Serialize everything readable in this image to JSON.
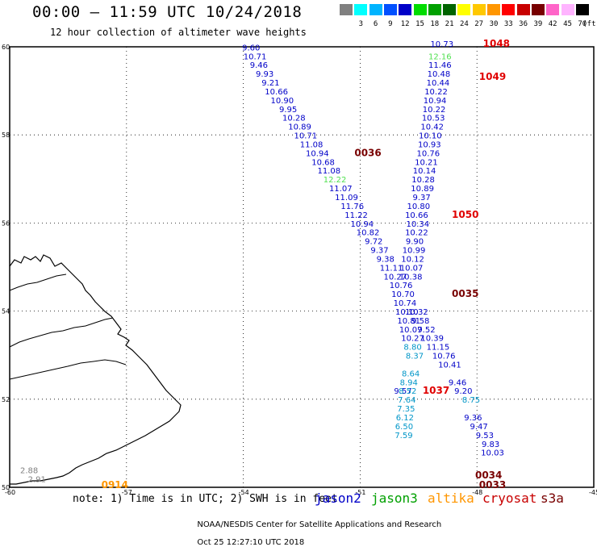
{
  "header": {
    "title": "00:00 – 11:59 UTC 10/24/2018",
    "subtitle": "12 hour collection of altimeter wave heights"
  },
  "legend": {
    "swatches": [
      {
        "color": "#808080",
        "label": ""
      },
      {
        "color": "#00ffff",
        "label": "3"
      },
      {
        "color": "#00b4ff",
        "label": "6"
      },
      {
        "color": "#0050ff",
        "label": "9"
      },
      {
        "color": "#0000c8",
        "label": "12"
      },
      {
        "color": "#00dc00",
        "label": "15"
      },
      {
        "color": "#00a000",
        "label": "18"
      },
      {
        "color": "#006400",
        "label": "21"
      },
      {
        "color": "#ffff00",
        "label": "24"
      },
      {
        "color": "#ffc800",
        "label": "27"
      },
      {
        "color": "#ff9600",
        "label": "30"
      },
      {
        "color": "#ff0000",
        "label": "33"
      },
      {
        "color": "#c80000",
        "label": "36"
      },
      {
        "color": "#780000",
        "label": "39"
      },
      {
        "color": "#ff64c8",
        "label": "42"
      },
      {
        "color": "#ffb4ff",
        "label": "45"
      },
      {
        "color": "#000000",
        "label": "70"
      }
    ],
    "unit": "(ft)"
  },
  "map": {
    "lat_range": [
      50,
      60
    ],
    "lon_range": [
      -60,
      -45
    ],
    "lat_ticks": [
      "60",
      "58",
      "56",
      "54",
      "52",
      "50"
    ],
    "lon_ticks": [
      "-60",
      "-57",
      "-54",
      "-51",
      "-48",
      "-45"
    ],
    "grid": "dotted"
  },
  "tracks": {
    "jason2": {
      "color": "#0000c8",
      "points": [
        {
          "lon": -53.8,
          "lat": 59.92,
          "v": "9.60"
        },
        {
          "lon": -53.7,
          "lat": 59.72,
          "v": "10.71"
        },
        {
          "lon": -53.6,
          "lat": 59.52,
          "v": "9.46"
        },
        {
          "lon": -53.45,
          "lat": 59.32,
          "v": "9.93"
        },
        {
          "lon": -53.3,
          "lat": 59.12,
          "v": "9.21"
        },
        {
          "lon": -53.15,
          "lat": 58.92,
          "v": "10.66"
        },
        {
          "lon": -53.0,
          "lat": 58.72,
          "v": "10.90"
        },
        {
          "lon": -52.85,
          "lat": 58.52,
          "v": "9.95"
        },
        {
          "lon": -52.7,
          "lat": 58.32,
          "v": "10.28"
        },
        {
          "lon": -52.55,
          "lat": 58.12,
          "v": "10.89"
        },
        {
          "lon": -52.4,
          "lat": 57.92,
          "v": "10.71"
        },
        {
          "lon": -52.25,
          "lat": 57.72,
          "v": "11.08"
        },
        {
          "lon": -52.1,
          "lat": 57.52,
          "v": "10.94"
        },
        {
          "lon": -51.95,
          "lat": 57.32,
          "v": "10.68"
        },
        {
          "lon": -51.8,
          "lat": 57.12,
          "v": "11.08"
        },
        {
          "lon": -51.5,
          "lat": 56.72,
          "v": "11.07"
        },
        {
          "lon": -51.35,
          "lat": 56.52,
          "v": "11.09"
        },
        {
          "lon": -51.2,
          "lat": 56.32,
          "v": "11.76"
        },
        {
          "lon": -51.1,
          "lat": 56.12,
          "v": "11.22"
        },
        {
          "lon": -50.95,
          "lat": 55.92,
          "v": "10.94"
        },
        {
          "lon": -50.8,
          "lat": 55.72,
          "v": "10.82"
        },
        {
          "lon": -50.65,
          "lat": 55.52,
          "v": "9.72"
        },
        {
          "lon": -50.5,
          "lat": 55.32,
          "v": "9.37"
        },
        {
          "lon": -50.35,
          "lat": 55.12,
          "v": "9.38"
        },
        {
          "lon": -50.2,
          "lat": 54.92,
          "v": "11.11"
        },
        {
          "lon": -50.1,
          "lat": 54.72,
          "v": "10.27"
        },
        {
          "lon": -49.95,
          "lat": 54.52,
          "v": "10.76"
        },
        {
          "lon": -49.9,
          "lat": 54.32,
          "v": "10.70"
        },
        {
          "lon": -49.85,
          "lat": 54.12,
          "v": "10.74"
        },
        {
          "lon": -49.8,
          "lat": 53.92,
          "v": "10.10"
        },
        {
          "lon": -49.75,
          "lat": 53.72,
          "v": "10.81"
        },
        {
          "lon": -49.7,
          "lat": 53.52,
          "v": "10.07"
        },
        {
          "lon": -49.65,
          "lat": 53.32,
          "v": "10.27"
        },
        {
          "lon": -49.9,
          "lat": 52.12,
          "v": "9.57"
        },
        {
          "lon": -48.9,
          "lat": 60.0,
          "v": "10.73"
        },
        {
          "lon": -48.95,
          "lat": 59.52,
          "v": "11.46"
        },
        {
          "lon": -48.98,
          "lat": 59.32,
          "v": "10.48"
        },
        {
          "lon": -49.0,
          "lat": 59.12,
          "v": "10.44"
        },
        {
          "lon": -49.05,
          "lat": 58.92,
          "v": "10.22"
        },
        {
          "lon": -49.08,
          "lat": 58.72,
          "v": "10.94"
        },
        {
          "lon": -49.1,
          "lat": 58.52,
          "v": "10.22"
        },
        {
          "lon": -49.12,
          "lat": 58.32,
          "v": "10.53"
        },
        {
          "lon": -49.15,
          "lat": 58.12,
          "v": "10.42"
        },
        {
          "lon": -49.2,
          "lat": 57.92,
          "v": "10.10"
        },
        {
          "lon": -49.22,
          "lat": 57.72,
          "v": "10.93"
        },
        {
          "lon": -49.25,
          "lat": 57.52,
          "v": "10.76"
        },
        {
          "lon": -49.3,
          "lat": 57.32,
          "v": "10.21"
        },
        {
          "lon": -49.35,
          "lat": 57.12,
          "v": "10.14"
        },
        {
          "lon": -49.38,
          "lat": 56.92,
          "v": "10.28"
        },
        {
          "lon": -49.4,
          "lat": 56.72,
          "v": "10.89"
        },
        {
          "lon": -49.42,
          "lat": 56.52,
          "v": "9.37"
        },
        {
          "lon": -49.5,
          "lat": 56.32,
          "v": "10.80"
        },
        {
          "lon": -49.55,
          "lat": 56.12,
          "v": "10.66"
        },
        {
          "lon": -49.52,
          "lat": 55.92,
          "v": "10.34"
        },
        {
          "lon": -49.55,
          "lat": 55.72,
          "v": "10.22"
        },
        {
          "lon": -49.6,
          "lat": 55.52,
          "v": "9.90"
        },
        {
          "lon": -49.62,
          "lat": 55.32,
          "v": "10.99"
        },
        {
          "lon": -49.65,
          "lat": 55.12,
          "v": "10.12"
        },
        {
          "lon": -49.68,
          "lat": 54.92,
          "v": "10.07"
        },
        {
          "lon": -49.7,
          "lat": 54.72,
          "v": "10.38"
        },
        {
          "lon": -49.55,
          "lat": 53.92,
          "v": "10.32"
        },
        {
          "lon": -49.45,
          "lat": 53.72,
          "v": "9.58"
        },
        {
          "lon": -49.3,
          "lat": 53.52,
          "v": "9.52"
        },
        {
          "lon": -49.15,
          "lat": 53.32,
          "v": "10.39"
        },
        {
          "lon": -49.0,
          "lat": 53.12,
          "v": "11.15"
        },
        {
          "lon": -48.85,
          "lat": 52.92,
          "v": "10.76"
        },
        {
          "lon": -48.7,
          "lat": 52.72,
          "v": "10.41"
        },
        {
          "lon": -48.5,
          "lat": 52.32,
          "v": "9.46"
        },
        {
          "lon": -48.35,
          "lat": 52.12,
          "v": "9.20"
        },
        {
          "lon": -48.1,
          "lat": 51.52,
          "v": "9.36"
        },
        {
          "lon": -47.95,
          "lat": 51.32,
          "v": "9.47"
        },
        {
          "lon": -47.8,
          "lat": 51.12,
          "v": "9.53"
        },
        {
          "lon": -47.65,
          "lat": 50.92,
          "v": "9.83"
        },
        {
          "lon": -47.6,
          "lat": 50.72,
          "v": "10.03"
        }
      ]
    },
    "jason3_light": {
      "color": "#50e050",
      "points": [
        {
          "lon": -48.95,
          "lat": 59.72,
          "v": "12.16"
        },
        {
          "lon": -51.65,
          "lat": 56.92,
          "v": "12.22"
        }
      ]
    },
    "cyan_track": {
      "color": "#0096c8",
      "points": [
        {
          "lon": -49.65,
          "lat": 53.12,
          "v": "8.80"
        },
        {
          "lon": -49.6,
          "lat": 52.92,
          "v": "8.37"
        },
        {
          "lon": -49.7,
          "lat": 52.52,
          "v": "8.64"
        },
        {
          "lon": -49.75,
          "lat": 52.32,
          "v": "8.94"
        },
        {
          "lon": -49.78,
          "lat": 52.12,
          "v": "8.52"
        },
        {
          "lon": -49.8,
          "lat": 51.92,
          "v": "7.64"
        },
        {
          "lon": -49.82,
          "lat": 51.72,
          "v": "7.35"
        },
        {
          "lon": -49.85,
          "lat": 51.52,
          "v": "6.12"
        },
        {
          "lon": -49.87,
          "lat": 51.32,
          "v": "6.50"
        },
        {
          "lon": -49.88,
          "lat": 51.12,
          "v": "7.59"
        },
        {
          "lon": -48.15,
          "lat": 51.92,
          "v": "8.75"
        }
      ]
    },
    "gray_track": {
      "color": "#808080",
      "points": [
        {
          "lon": -59.5,
          "lat": 50.32,
          "v": "2.88"
        },
        {
          "lon": -59.3,
          "lat": 50.12,
          "v": "2.91"
        }
      ]
    }
  },
  "time_labels": [
    {
      "lon": -47.5,
      "lat": 60.0,
      "t": "1048",
      "color": "#e00000"
    },
    {
      "lon": -47.6,
      "lat": 59.25,
      "t": "1049",
      "color": "#e00000"
    },
    {
      "lon": -48.3,
      "lat": 56.12,
      "t": "1050",
      "color": "#e00000"
    },
    {
      "lon": -50.8,
      "lat": 57.52,
      "t": "0036",
      "color": "#780000"
    },
    {
      "lon": -48.3,
      "lat": 54.32,
      "t": "0035",
      "color": "#780000"
    },
    {
      "lon": -49.05,
      "lat": 52.12,
      "t": "1037",
      "color": "#e00000"
    },
    {
      "lon": -47.7,
      "lat": 50.2,
      "t": "0034",
      "color": "#780000"
    },
    {
      "lon": -47.6,
      "lat": 49.98,
      "t": "0033",
      "color": "#780000"
    },
    {
      "lon": -57.3,
      "lat": 49.98,
      "t": "0914",
      "color": "#ff9600"
    }
  ],
  "footer": {
    "note": "note: 1) Time is in UTC; 2) SWH is in feet",
    "satellites": [
      {
        "name": "jason2",
        "color": "#0000c8"
      },
      {
        "name": "jason3",
        "color": "#00a000"
      },
      {
        "name": "altika",
        "color": "#ff9600"
      },
      {
        "name": "cryosat",
        "color": "#c80000"
      },
      {
        "name": "s3a",
        "color": "#780000"
      }
    ],
    "credit_left": "NOAA/NESDIS Center for Satellite Applications and Research",
    "credit_right": "Oct 25 12:27:10 UTC 2018"
  }
}
